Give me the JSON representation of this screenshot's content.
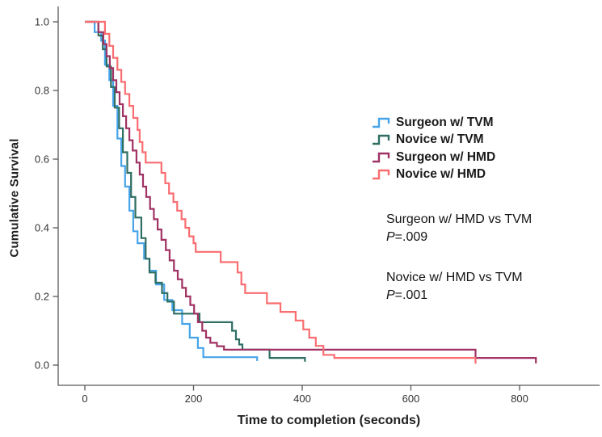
{
  "figure": {
    "background": "#ffffff",
    "axis_color": "#595959",
    "tick_text_color": "#333333",
    "text_color": "#1a1a1a"
  },
  "chart_data": {
    "type": "line",
    "subtype": "kaplan-meier-step",
    "title": "",
    "xlabel": "Time to completion (seconds)",
    "ylabel": "Cumulative Survival",
    "xlim": [
      0,
      880
    ],
    "ylim": [
      0,
      1.0
    ],
    "grid": false,
    "legend_position": "right-middle",
    "x_ticks": [
      "0",
      "200",
      "400",
      "600",
      "800"
    ],
    "x_tick_values": [
      0,
      200,
      400,
      600,
      800
    ],
    "y_ticks": [
      "0.0",
      "0.2",
      "0.4",
      "0.6",
      "0.8",
      "1.0"
    ],
    "y_tick_values": [
      0,
      0.2,
      0.4,
      0.6,
      0.8,
      1.0
    ],
    "series": [
      {
        "name": "Surgeon w/ TVM",
        "color": "#47a4e9",
        "points": [
          [
            0,
            1
          ],
          [
            18,
            1
          ],
          [
            18,
            0.97
          ],
          [
            30,
            0.97
          ],
          [
            30,
            0.945
          ],
          [
            37,
            0.945
          ],
          [
            37,
            0.875
          ],
          [
            45,
            0.875
          ],
          [
            45,
            0.83
          ],
          [
            52,
            0.83
          ],
          [
            52,
            0.755
          ],
          [
            60,
            0.755
          ],
          [
            60,
            0.66
          ],
          [
            67,
            0.66
          ],
          [
            67,
            0.58
          ],
          [
            74,
            0.58
          ],
          [
            74,
            0.52
          ],
          [
            82,
            0.52
          ],
          [
            82,
            0.45
          ],
          [
            89,
            0.45
          ],
          [
            89,
            0.39
          ],
          [
            97,
            0.39
          ],
          [
            97,
            0.355
          ],
          [
            109,
            0.355
          ],
          [
            109,
            0.31
          ],
          [
            119,
            0.31
          ],
          [
            119,
            0.275
          ],
          [
            131,
            0.275
          ],
          [
            131,
            0.235
          ],
          [
            146,
            0.235
          ],
          [
            146,
            0.19
          ],
          [
            161,
            0.19
          ],
          [
            161,
            0.16
          ],
          [
            179,
            0.16
          ],
          [
            179,
            0.12
          ],
          [
            193,
            0.12
          ],
          [
            193,
            0.08
          ],
          [
            208,
            0.08
          ],
          [
            208,
            0.05
          ],
          [
            218,
            0.05
          ],
          [
            218,
            0.023
          ],
          [
            317,
            0.023
          ],
          [
            317,
            0.012
          ]
        ]
      },
      {
        "name": "Novice w/ TVM",
        "color": "#2e6e63",
        "points": [
          [
            0,
            1
          ],
          [
            25,
            1
          ],
          [
            25,
            0.96
          ],
          [
            33,
            0.96
          ],
          [
            33,
            0.92
          ],
          [
            40,
            0.92
          ],
          [
            40,
            0.87
          ],
          [
            48,
            0.87
          ],
          [
            48,
            0.81
          ],
          [
            55,
            0.81
          ],
          [
            55,
            0.75
          ],
          [
            63,
            0.75
          ],
          [
            63,
            0.69
          ],
          [
            70,
            0.69
          ],
          [
            70,
            0.62
          ],
          [
            78,
            0.62
          ],
          [
            78,
            0.56
          ],
          [
            85,
            0.56
          ],
          [
            85,
            0.49
          ],
          [
            93,
            0.49
          ],
          [
            93,
            0.43
          ],
          [
            104,
            0.43
          ],
          [
            104,
            0.37
          ],
          [
            112,
            0.37
          ],
          [
            112,
            0.31
          ],
          [
            119,
            0.31
          ],
          [
            119,
            0.27
          ],
          [
            130,
            0.27
          ],
          [
            130,
            0.24
          ],
          [
            142,
            0.24
          ],
          [
            142,
            0.21
          ],
          [
            152,
            0.21
          ],
          [
            152,
            0.185
          ],
          [
            164,
            0.185
          ],
          [
            164,
            0.15
          ],
          [
            211,
            0.15
          ],
          [
            211,
            0.125
          ],
          [
            271,
            0.125
          ],
          [
            271,
            0.1
          ],
          [
            278,
            0.1
          ],
          [
            278,
            0.075
          ],
          [
            284,
            0.075
          ],
          [
            284,
            0.06
          ],
          [
            290,
            0.06
          ],
          [
            290,
            0.045
          ],
          [
            340,
            0.045
          ],
          [
            340,
            0.021
          ],
          [
            405,
            0.021
          ],
          [
            405,
            0.01
          ]
        ]
      },
      {
        "name": "Surgeon w/ HMD",
        "color": "#a03264",
        "points": [
          [
            0,
            1
          ],
          [
            25,
            1
          ],
          [
            25,
            0.97
          ],
          [
            34,
            0.97
          ],
          [
            34,
            0.935
          ],
          [
            40,
            0.935
          ],
          [
            40,
            0.9
          ],
          [
            46,
            0.9
          ],
          [
            46,
            0.865
          ],
          [
            52,
            0.865
          ],
          [
            52,
            0.83
          ],
          [
            58,
            0.83
          ],
          [
            58,
            0.795
          ],
          [
            64,
            0.795
          ],
          [
            64,
            0.76
          ],
          [
            70,
            0.76
          ],
          [
            70,
            0.725
          ],
          [
            76,
            0.725
          ],
          [
            76,
            0.69
          ],
          [
            82,
            0.69
          ],
          [
            82,
            0.655
          ],
          [
            88,
            0.655
          ],
          [
            88,
            0.625
          ],
          [
            95,
            0.625
          ],
          [
            95,
            0.59
          ],
          [
            101,
            0.59
          ],
          [
            101,
            0.555
          ],
          [
            107,
            0.555
          ],
          [
            107,
            0.52
          ],
          [
            113,
            0.52
          ],
          [
            113,
            0.49
          ],
          [
            120,
            0.49
          ],
          [
            120,
            0.455
          ],
          [
            127,
            0.455
          ],
          [
            127,
            0.425
          ],
          [
            134,
            0.425
          ],
          [
            134,
            0.395
          ],
          [
            141,
            0.395
          ],
          [
            141,
            0.365
          ],
          [
            149,
            0.365
          ],
          [
            149,
            0.335
          ],
          [
            156,
            0.335
          ],
          [
            156,
            0.305
          ],
          [
            164,
            0.305
          ],
          [
            164,
            0.275
          ],
          [
            171,
            0.275
          ],
          [
            171,
            0.25
          ],
          [
            179,
            0.25
          ],
          [
            179,
            0.225
          ],
          [
            186,
            0.225
          ],
          [
            186,
            0.2
          ],
          [
            194,
            0.2
          ],
          [
            194,
            0.175
          ],
          [
            201,
            0.175
          ],
          [
            201,
            0.15
          ],
          [
            208,
            0.15
          ],
          [
            208,
            0.125
          ],
          [
            216,
            0.125
          ],
          [
            216,
            0.1
          ],
          [
            223,
            0.1
          ],
          [
            223,
            0.08
          ],
          [
            231,
            0.08
          ],
          [
            231,
            0.065
          ],
          [
            243,
            0.065
          ],
          [
            243,
            0.055
          ],
          [
            256,
            0.055
          ],
          [
            256,
            0.045
          ],
          [
            719,
            0.045
          ],
          [
            719,
            0.021
          ],
          [
            830,
            0.021
          ],
          [
            830,
            0.005
          ]
        ]
      },
      {
        "name": "Novice w/ HMD",
        "color": "#fa6d70",
        "points": [
          [
            0,
            1
          ],
          [
            37,
            1
          ],
          [
            37,
            0.965
          ],
          [
            45,
            0.965
          ],
          [
            45,
            0.93
          ],
          [
            52,
            0.93
          ],
          [
            52,
            0.895
          ],
          [
            60,
            0.895
          ],
          [
            60,
            0.86
          ],
          [
            67,
            0.86
          ],
          [
            67,
            0.825
          ],
          [
            74,
            0.825
          ],
          [
            74,
            0.79
          ],
          [
            82,
            0.79
          ],
          [
            82,
            0.755
          ],
          [
            89,
            0.755
          ],
          [
            89,
            0.72
          ],
          [
            97,
            0.72
          ],
          [
            97,
            0.685
          ],
          [
            101,
            0.685
          ],
          [
            101,
            0.65
          ],
          [
            106,
            0.65
          ],
          [
            106,
            0.62
          ],
          [
            112,
            0.62
          ],
          [
            112,
            0.59
          ],
          [
            141,
            0.59
          ],
          [
            141,
            0.56
          ],
          [
            148,
            0.56
          ],
          [
            148,
            0.53
          ],
          [
            155,
            0.53
          ],
          [
            155,
            0.5
          ],
          [
            163,
            0.5
          ],
          [
            163,
            0.475
          ],
          [
            170,
            0.475
          ],
          [
            170,
            0.45
          ],
          [
            178,
            0.45
          ],
          [
            178,
            0.425
          ],
          [
            185,
            0.425
          ],
          [
            185,
            0.4
          ],
          [
            192,
            0.4
          ],
          [
            192,
            0.375
          ],
          [
            200,
            0.375
          ],
          [
            200,
            0.355
          ],
          [
            204,
            0.355
          ],
          [
            204,
            0.33
          ],
          [
            250,
            0.33
          ],
          [
            250,
            0.3
          ],
          [
            281,
            0.3
          ],
          [
            281,
            0.27
          ],
          [
            288,
            0.27
          ],
          [
            288,
            0.235
          ],
          [
            295,
            0.235
          ],
          [
            295,
            0.21
          ],
          [
            335,
            0.21
          ],
          [
            335,
            0.18
          ],
          [
            360,
            0.18
          ],
          [
            360,
            0.155
          ],
          [
            388,
            0.155
          ],
          [
            388,
            0.13
          ],
          [
            402,
            0.13
          ],
          [
            402,
            0.104
          ],
          [
            413,
            0.104
          ],
          [
            413,
            0.08
          ],
          [
            425,
            0.08
          ],
          [
            425,
            0.056
          ],
          [
            439,
            0.056
          ],
          [
            439,
            0.03
          ],
          [
            459,
            0.03
          ],
          [
            459,
            0.021
          ],
          [
            719,
            0.021
          ],
          [
            719,
            0.004
          ]
        ]
      }
    ]
  },
  "annotations": [
    {
      "title": "Surgeon w/ HMD vs TVM",
      "p_label": "P",
      "p_value": "=.009"
    },
    {
      "title": "Novice w/ HMD vs TVM",
      "p_label": "P",
      "p_value": "=.001"
    }
  ]
}
